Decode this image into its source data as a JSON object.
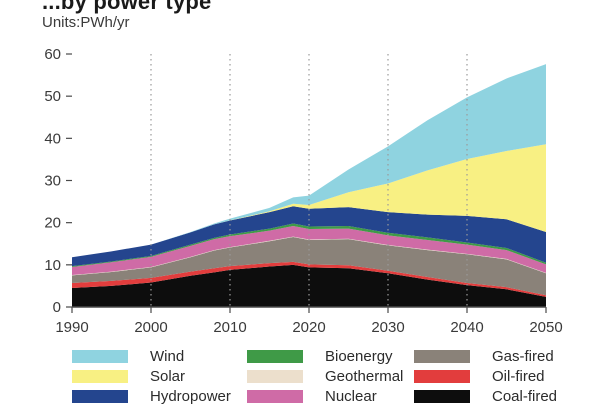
{
  "title": "...by power type",
  "units_label": "Units:PWh/yr",
  "chart_data": {
    "type": "area",
    "stacked": true,
    "ylabel": "Units:PWh/yr",
    "xlim": [
      1990,
      2050
    ],
    "ylim": [
      0,
      60
    ],
    "x_ticks": [
      1990,
      2000,
      2010,
      2020,
      2030,
      2040,
      2050
    ],
    "y_ticks": [
      0,
      10,
      20,
      30,
      40,
      50,
      60
    ],
    "vertical_grid": "dotted",
    "legend_position": "bottom",
    "x": [
      1990,
      1995,
      2000,
      2005,
      2008,
      2010,
      2015,
      2018,
      2020,
      2025,
      2030,
      2035,
      2040,
      2045,
      2050
    ],
    "series": [
      {
        "name": "Coal-fired",
        "color": "#0d0d0d",
        "values": [
          4.5,
          5.0,
          5.8,
          7.4,
          8.2,
          8.8,
          9.6,
          10.0,
          9.4,
          9.2,
          8.0,
          6.5,
          5.2,
          4.2,
          2.4
        ]
      },
      {
        "name": "Oil-fired",
        "color": "#e23d3d",
        "values": [
          1.2,
          1.2,
          1.1,
          1.0,
          1.0,
          0.9,
          0.8,
          0.7,
          0.7,
          0.7,
          0.6,
          0.6,
          0.5,
          0.5,
          0.4
        ]
      },
      {
        "name": "Gas-fired",
        "color": "#8a8279",
        "values": [
          1.8,
          2.1,
          2.5,
          3.4,
          4.2,
          4.4,
          5.2,
          5.9,
          5.8,
          6.2,
          6.0,
          6.4,
          6.8,
          6.6,
          5.2
        ]
      },
      {
        "name": "Geothermal",
        "color": "#ecdfcc",
        "values": [
          0.1,
          0.1,
          0.1,
          0.1,
          0.1,
          0.1,
          0.1,
          0.1,
          0.1,
          0.1,
          0.1,
          0.1,
          0.1,
          0.1,
          0.1
        ]
      },
      {
        "name": "Nuclear",
        "color": "#cf6ba6",
        "values": [
          1.9,
          2.2,
          2.4,
          2.6,
          2.6,
          2.6,
          2.4,
          2.5,
          2.5,
          2.4,
          2.3,
          2.3,
          2.2,
          2.1,
          2.0
        ]
      },
      {
        "name": "Bioenergy",
        "color": "#3f9a47",
        "values": [
          0.2,
          0.2,
          0.2,
          0.3,
          0.3,
          0.4,
          0.5,
          0.6,
          0.6,
          0.6,
          0.6,
          0.6,
          0.5,
          0.5,
          0.4
        ]
      },
      {
        "name": "Hydropower",
        "color": "#24458e",
        "values": [
          2.1,
          2.4,
          2.7,
          2.9,
          3.2,
          3.3,
          3.9,
          4.1,
          4.2,
          4.5,
          4.9,
          5.4,
          6.3,
          6.8,
          7.3
        ]
      },
      {
        "name": "Solar",
        "color": "#f8f083",
        "values": [
          0.0,
          0.0,
          0.0,
          0.0,
          0.0,
          0.05,
          0.2,
          0.6,
          0.9,
          3.5,
          6.8,
          10.5,
          13.5,
          16.2,
          20.8
        ]
      },
      {
        "name": "Wind",
        "color": "#8fd3e0",
        "values": [
          0.0,
          0.0,
          0.0,
          0.1,
          0.2,
          0.4,
          0.8,
          1.5,
          2.2,
          5.4,
          8.8,
          11.9,
          14.6,
          17.2,
          19.0
        ]
      }
    ]
  },
  "legend": [
    {
      "label": "Wind",
      "color": "#8fd3e0"
    },
    {
      "label": "Solar",
      "color": "#f8f083"
    },
    {
      "label": "Hydropower",
      "color": "#24458e"
    },
    {
      "label": "Bioenergy",
      "color": "#3f9a47"
    },
    {
      "label": "Geothermal",
      "color": "#ecdfcc"
    },
    {
      "label": "Nuclear",
      "color": "#cf6ba6"
    },
    {
      "label": "Gas-fired",
      "color": "#8a8279"
    },
    {
      "label": "Oil-fired",
      "color": "#e23d3d"
    },
    {
      "label": "Coal-fired",
      "color": "#0d0d0d"
    }
  ]
}
